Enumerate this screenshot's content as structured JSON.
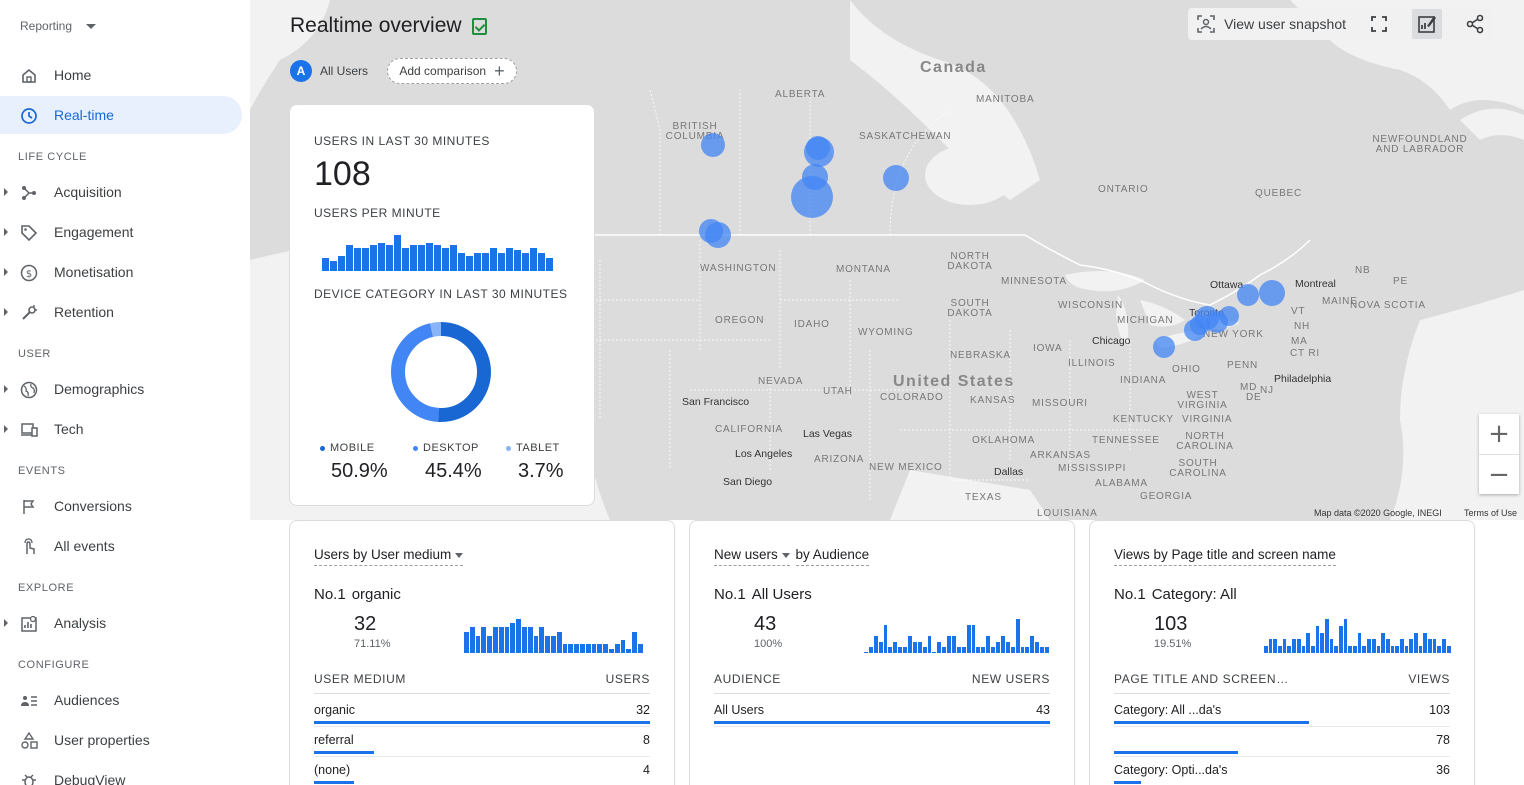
{
  "sidebar": {
    "app_selector": "Reporting",
    "home": "Home",
    "realtime": "Real-time",
    "sections": {
      "life_cycle": "LIFE CYCLE",
      "user": "USER",
      "events": "EVENTS",
      "explore": "EXPLORE",
      "configure": "CONFIGURE"
    },
    "items": {
      "acquisition": "Acquisition",
      "engagement": "Engagement",
      "monetisation": "Monetisation",
      "retention": "Retention",
      "demographics": "Demographics",
      "tech": "Tech",
      "conversions": "Conversions",
      "all_events": "All events",
      "analysis": "Analysis",
      "audiences": "Audiences",
      "user_properties": "User properties",
      "debug_view": "DebugView"
    }
  },
  "header": {
    "title": "Realtime overview",
    "segment": "All Users",
    "segment_letter": "A",
    "add_comparison": "Add comparison",
    "view_snapshot": "View user snapshot"
  },
  "map": {
    "labels": {
      "canada": "Canada",
      "united_states": "United States",
      "alberta": "ALBERTA",
      "british_columbia": "BRITISH COLUMBIA",
      "saskatchewan": "SASKATCHEWAN",
      "manitoba": "MANITOBA",
      "ontario": "ONTARIO",
      "quebec": "QUEBEC",
      "newfoundland": "NEWFOUNDLAND AND LABRADOR",
      "washington": "WASHINGTON",
      "montana": "MONTANA",
      "north_dakota": "NORTH DAKOTA",
      "south_dakota": "SOUTH DAKOTA",
      "minnesota": "MINNESOTA",
      "wisconsin": "WISCONSIN",
      "michigan": "MICHIGAN",
      "oregon": "OREGON",
      "idaho": "IDAHO",
      "wyoming": "WYOMING",
      "nebraska": "NEBRASKA",
      "iowa": "IOWA",
      "illinois": "ILLINOIS",
      "indiana": "INDIANA",
      "ohio": "OHIO",
      "penn": "PENN",
      "new_york": "NEW YORK",
      "nevada": "NEVADA",
      "utah": "UTAH",
      "colorado": "COLORADO",
      "kansas": "KANSAS",
      "missouri": "MISSOURI",
      "california": "CALIFORNIA",
      "arizona": "ARIZONA",
      "new_mexico": "NEW MEXICO",
      "oklahoma": "OKLAHOMA",
      "arkansas": "ARKANSAS",
      "tennessee": "TENNESSEE",
      "kentucky": "KENTUCKY",
      "west_virginia": "WEST VIRGINIA",
      "virginia": "VIRGINIA",
      "north_carolina": "NORTH CAROLINA",
      "south_carolina": "SOUTH CAROLINA",
      "mississippi": "MISSISSIPPI",
      "alabama": "ALABAMA",
      "georgia": "GEORGIA",
      "texas": "TEXAS",
      "louisiana": "LOUISIANA",
      "maine": "MAINE",
      "vt": "VT",
      "nh": "NH",
      "ma": "MA",
      "ct": "CT",
      "ri": "RI",
      "md": "MD",
      "de": "DE",
      "nj": "NJ",
      "nb": "NB",
      "pe": "PE",
      "nova_scotia": "NOVA SCOTIA"
    },
    "cities": {
      "ottawa": "Ottawa",
      "montreal": "Montreal",
      "toronto": "Toronto",
      "chicago": "Chicago",
      "philadelphia": "Philadelphia",
      "san_francisco": "San Francisco",
      "las_vegas": "Las Vegas",
      "los_angeles": "Los Angeles",
      "san_diego": "San Diego",
      "dallas": "Dallas"
    },
    "attribution": "Map data ©2020 Google, INEGI",
    "terms": "Terms of Use",
    "zoom_in": "+",
    "zoom_out": "−"
  },
  "kpi": {
    "users_30_label": "USERS IN LAST 30 MINUTES",
    "users_30_value": "108",
    "per_minute_label": "USERS PER MINUTE",
    "per_minute_bars": [
      5,
      4,
      6,
      10,
      9,
      9,
      10,
      11,
      10,
      14,
      9,
      10,
      10,
      11,
      10,
      9,
      10,
      7,
      6,
      7,
      7,
      9,
      7,
      9,
      8,
      7,
      9,
      7,
      5
    ],
    "device_label": "DEVICE CATEGORY IN LAST 30 MINUTES",
    "device": {
      "mobile_label": "MOBILE",
      "mobile_value": "50.9%",
      "mobile_share": 50.9,
      "desktop_label": "DESKTOP",
      "desktop_value": "45.4%",
      "desktop_share": 45.4,
      "tablet_label": "TABLET",
      "tablet_value": "3.7%",
      "tablet_share": 3.7
    }
  },
  "cards": {
    "medium": {
      "title": "Users by User medium",
      "no1_label": "No.1",
      "no1_name": "organic",
      "top_value": "32",
      "top_pct": "71.11%",
      "col1": "USER MEDIUM",
      "col2": "USERS",
      "bars": [
        5,
        6,
        4,
        6,
        4,
        6,
        6,
        6,
        7,
        8,
        6,
        6,
        4,
        6,
        4,
        4,
        5,
        2,
        2,
        2,
        2,
        2,
        2,
        2,
        2,
        1,
        2,
        3,
        1,
        5,
        2
      ],
      "rows": [
        {
          "label": "organic",
          "value": "32",
          "share": 100
        },
        {
          "label": "referral",
          "value": "8",
          "share": 18
        },
        {
          "label": "(none)",
          "value": "4",
          "share": 12
        }
      ]
    },
    "new_users": {
      "title_metric": "New users",
      "title_dim": "by Audience",
      "no1_label": "No.1",
      "no1_name": "All Users",
      "top_value": "43",
      "top_pct": "100%",
      "col1": "AUDIENCE",
      "col2": "NEW USERS",
      "bars": [
        0,
        1,
        3,
        2,
        5,
        1,
        2,
        1,
        1,
        3,
        2,
        2,
        1,
        3,
        0,
        2,
        1,
        3,
        3,
        1,
        1,
        5,
        5,
        1,
        1,
        3,
        1,
        2,
        3,
        2,
        1,
        6,
        1,
        1,
        3,
        2,
        1,
        1
      ],
      "rows": [
        {
          "label": "All Users",
          "value": "43",
          "share": 100
        }
      ]
    },
    "views": {
      "title": "Views by Page title and screen name",
      "no1_label": "No.1",
      "no1_name": "Category: All",
      "top_value": "103",
      "top_pct": "19.51%",
      "col1": "PAGE TITLE AND SCREEN…",
      "col2": "VIEWS",
      "bars": [
        1,
        2,
        2,
        1,
        2,
        1,
        2,
        2,
        1,
        3,
        1,
        4,
        3,
        5,
        2,
        1,
        4,
        5,
        1,
        1,
        3,
        1,
        2,
        2,
        1,
        3,
        2,
        1,
        1,
        2,
        1,
        2,
        3,
        1,
        3,
        2,
        2,
        1,
        2,
        1
      ],
      "rows": [
        {
          "label": "Category: All ...da's",
          "value": "103",
          "share": 58
        },
        {
          "label": "",
          "value": "78",
          "share": 37
        },
        {
          "label": "Category: Opti...da's",
          "value": "36",
          "share": 8
        }
      ]
    }
  },
  "colors": {
    "accent": "#1a73e8",
    "dark_blue": "#1967d2",
    "light_blue": "#8ab4f8",
    "bubble": "#4285f4",
    "map_land": "#dcdcdc"
  }
}
